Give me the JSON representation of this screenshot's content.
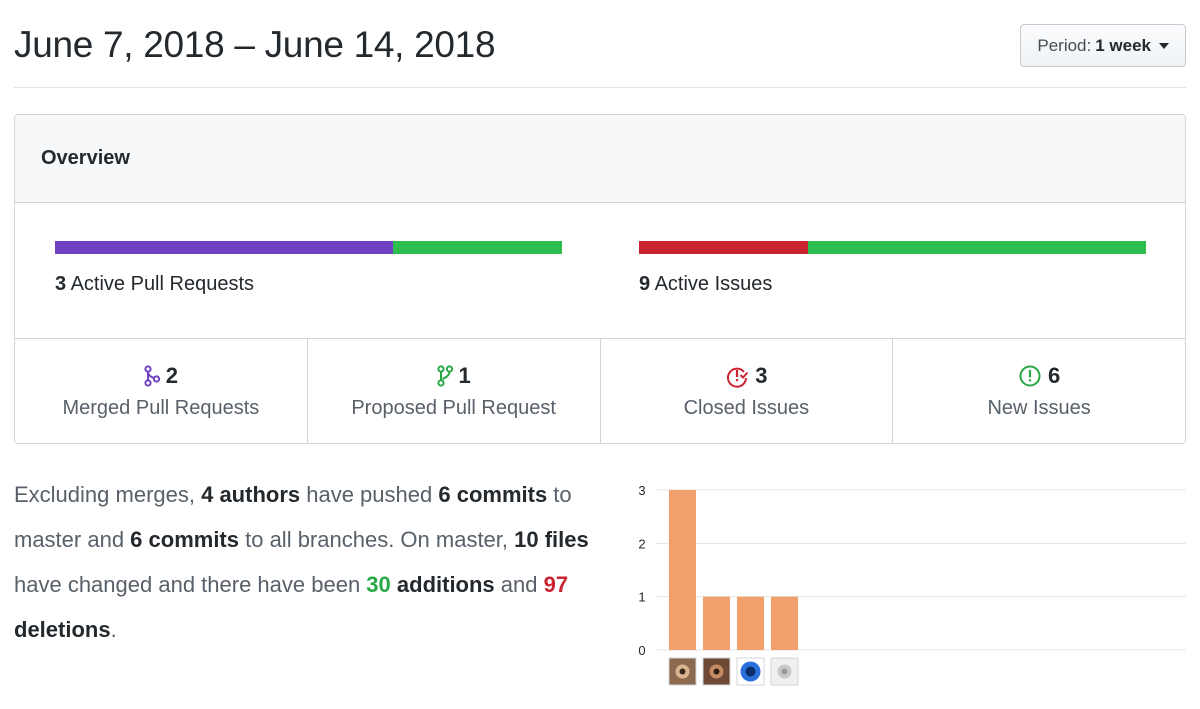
{
  "header": {
    "date_range": "June 7, 2018 – June 14, 2018",
    "period_label": "Period:",
    "period_value": "1 week"
  },
  "overview": {
    "title": "Overview",
    "pull_requests": {
      "count": "3",
      "label": "Active Pull Requests",
      "bar": [
        {
          "name": "merged",
          "share": 0.667,
          "color": "#6f42c1"
        },
        {
          "name": "open",
          "share": 0.333,
          "color": "#2cbe4e"
        }
      ]
    },
    "issues": {
      "count": "9",
      "label": "Active Issues",
      "bar": [
        {
          "name": "closed",
          "share": 0.333,
          "color": "#cb2431"
        },
        {
          "name": "new",
          "share": 0.667,
          "color": "#2cbe4e"
        }
      ]
    },
    "stats": [
      {
        "count": "2",
        "label": "Merged Pull Requests",
        "icon": "git-merge-icon",
        "color": "#6f42c1"
      },
      {
        "count": "1",
        "label": "Proposed Pull Request",
        "icon": "git-pull-request-icon",
        "color": "#28a745"
      },
      {
        "count": "3",
        "label": "Closed Issues",
        "icon": "issue-closed-icon",
        "color": "#cb2431"
      },
      {
        "count": "6",
        "label": "New Issues",
        "icon": "issue-opened-icon",
        "color": "#28a745"
      }
    ]
  },
  "summary": {
    "t1": "Excluding merges, ",
    "authors": "4 authors",
    "t2": " have pushed ",
    "commits_master": "6 commits",
    "t3": " to master and ",
    "commits_all": "6 commits",
    "t4": " to all branches. On master, ",
    "files": "10 files",
    "t5": " have changed and there have been ",
    "additions_num": "30",
    "additions_word": " additions",
    "t6": " and ",
    "deletions_num": "97",
    "deletions_word": " deletions",
    "t7": "."
  },
  "chart_data": {
    "type": "bar",
    "categories": [
      "author-1",
      "author-2",
      "author-3",
      "author-4"
    ],
    "values": [
      3,
      1,
      1,
      1
    ],
    "yticks": [
      "0",
      "1",
      "2",
      "3"
    ],
    "ylim": [
      0,
      3
    ],
    "grid": true,
    "bar_color": "#f1a06b",
    "avatars": [
      "avatar-photo-1",
      "avatar-photo-2",
      "avatar-logo-blue",
      "avatar-github-default"
    ]
  }
}
